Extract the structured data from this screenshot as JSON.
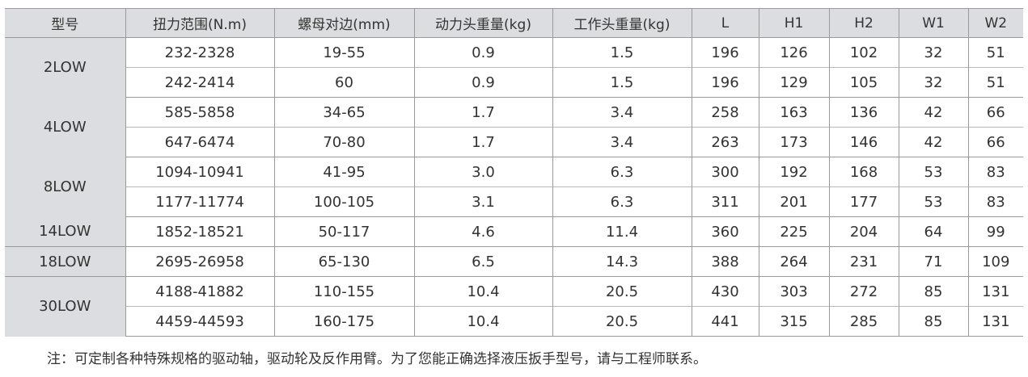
{
  "headers": [
    "型号",
    "扭力范围(N.m)",
    "螺母对边(mm)",
    "动力头重量(kg)",
    "工作头重量(kg)",
    "L",
    "H1",
    "H2",
    "W1",
    "W2"
  ],
  "groups": [
    {
      "model": "2LOW",
      "rows": [
        [
          "232-2328",
          "19-55",
          "0.9",
          "1.5",
          "196",
          "126",
          "102",
          "32",
          "51"
        ],
        [
          "242-2414",
          "60",
          "0.9",
          "1.5",
          "196",
          "129",
          "105",
          "32",
          "51"
        ]
      ]
    },
    {
      "model": "4LOW",
      "rows": [
        [
          "585-5858",
          "34-65",
          "1.7",
          "3.4",
          "258",
          "163",
          "136",
          "42",
          "66"
        ],
        [
          "647-6474",
          "70-80",
          "1.7",
          "3.4",
          "263",
          "173",
          "146",
          "42",
          "66"
        ]
      ]
    },
    {
      "model": "8LOW",
      "rows": [
        [
          "1094-10941",
          "41-95",
          "3.0",
          "6.3",
          "300",
          "192",
          "168",
          "53",
          "83"
        ],
        [
          "1177-11774",
          "100-105",
          "3.1",
          "6.3",
          "311",
          "201",
          "177",
          "53",
          "83"
        ]
      ]
    },
    {
      "model": "14LOW",
      "rows": [
        [
          "1852-18521",
          "50-117",
          "4.6",
          "11.4",
          "360",
          "225",
          "204",
          "64",
          "99"
        ]
      ]
    },
    {
      "model": "18LOW",
      "rows": [
        [
          "2695-26958",
          "65-130",
          "6.5",
          "14.3",
          "388",
          "264",
          "231",
          "71",
          "109"
        ]
      ]
    },
    {
      "model": "30LOW",
      "rows": [
        [
          "4188-41882",
          "110-155",
          "10.4",
          "20.5",
          "430",
          "303",
          "272",
          "85",
          "131"
        ],
        [
          "4459-44593",
          "160-175",
          "10.4",
          "20.5",
          "441",
          "315",
          "285",
          "85",
          "131"
        ]
      ]
    }
  ],
  "note": "注：可定制各种特殊规格的驱动轴，驱动轮及反作用臂。为了您能正确选择液压扳手型号，请与工程师联系。",
  "colors": {
    "header_bg": "#dcdde0",
    "border": "#9a9a9a",
    "text": "#333333"
  }
}
